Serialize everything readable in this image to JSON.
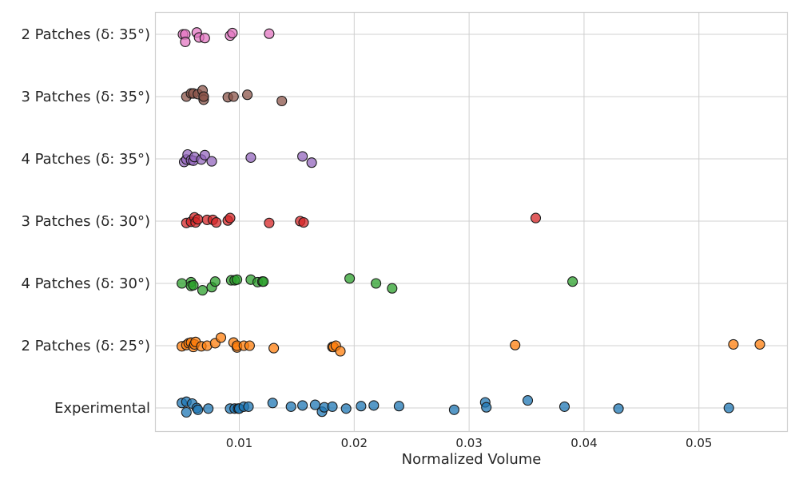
{
  "chart_data": {
    "type": "scatter",
    "title": "",
    "xlabel": "Normalized Volume",
    "ylabel": "",
    "xlim": [
      0.0027,
      0.0577
    ],
    "xticks": [
      0.01,
      0.02,
      0.03,
      0.04,
      0.05
    ],
    "xtick_labels": [
      "0.01",
      "0.02",
      "0.03",
      "0.04",
      "0.05"
    ],
    "grid": true,
    "categories": [
      "Experimental",
      "2 Patches (δ: 25°)",
      "4 Patches (δ: 30°)",
      "3 Patches (δ: 30°)",
      "4 Patches (δ: 35°)",
      "3 Patches (δ: 35°)",
      "2 Patches (δ: 35°)"
    ],
    "series": [
      {
        "name": "Experimental",
        "color": "#1f77b4",
        "x": [
          0.005,
          0.0054,
          0.0054,
          0.0059,
          0.0063,
          0.0064,
          0.0073,
          0.0092,
          0.0096,
          0.0099,
          0.01,
          0.0104,
          0.0108,
          0.0129,
          0.0145,
          0.0155,
          0.0166,
          0.0172,
          0.0174,
          0.0181,
          0.0193,
          0.0206,
          0.0217,
          0.0239,
          0.0287,
          0.0314,
          0.0315,
          0.0351,
          0.0383,
          0.043,
          0.0526
        ],
        "jitter": [
          0.08,
          0.1,
          -0.07,
          0.07,
          0.0,
          -0.03,
          -0.01,
          -0.01,
          -0.01,
          -0.01,
          -0.01,
          0.02,
          0.02,
          0.08,
          0.02,
          0.04,
          0.05,
          -0.06,
          0.01,
          0.02,
          -0.01,
          0.03,
          0.04,
          0.03,
          -0.03,
          0.09,
          0.01,
          0.12,
          0.02,
          -0.01,
          0.0
        ]
      },
      {
        "name": "2 Patches (δ: 25°)",
        "color": "#ff7f0e",
        "x": [
          0.005,
          0.0054,
          0.0056,
          0.0058,
          0.006,
          0.0061,
          0.0062,
          0.0067,
          0.0072,
          0.0079,
          0.0084,
          0.0095,
          0.0098,
          0.0098,
          0.0104,
          0.0109,
          0.013,
          0.0181,
          0.0182,
          0.0184,
          0.0188,
          0.034,
          0.053,
          0.0553
        ],
        "jitter": [
          -0.01,
          0.01,
          0.04,
          0.05,
          -0.02,
          0.02,
          0.06,
          -0.01,
          0.0,
          0.04,
          0.13,
          0.05,
          -0.03,
          0.0,
          0.0,
          0.0,
          -0.04,
          -0.02,
          -0.02,
          0.0,
          -0.09,
          0.01,
          0.02,
          0.02
        ]
      },
      {
        "name": "4 Patches (δ: 30°)",
        "color": "#2ca02c",
        "x": [
          0.005,
          0.0058,
          0.0058,
          0.006,
          0.0068,
          0.0076,
          0.0079,
          0.0093,
          0.0096,
          0.0098,
          0.011,
          0.0116,
          0.012,
          0.0121,
          0.0196,
          0.0219,
          0.0233,
          0.039
        ],
        "jitter": [
          0.0,
          0.02,
          -0.04,
          -0.03,
          -0.11,
          -0.06,
          0.03,
          0.05,
          0.05,
          0.06,
          0.06,
          0.02,
          0.03,
          0.03,
          0.08,
          0.0,
          -0.08,
          0.03
        ]
      },
      {
        "name": "3 Patches (δ: 30°)",
        "color": "#d62728",
        "x": [
          0.0054,
          0.0058,
          0.0061,
          0.0062,
          0.0064,
          0.0072,
          0.0077,
          0.008,
          0.009,
          0.0092,
          0.0126,
          0.0153,
          0.0156,
          0.0358
        ],
        "jitter": [
          -0.03,
          -0.01,
          0.06,
          -0.02,
          0.03,
          0.02,
          0.02,
          -0.02,
          0.01,
          0.05,
          -0.03,
          0.0,
          -0.02,
          0.05
        ]
      },
      {
        "name": "4 Patches (δ: 35°)",
        "color": "#9467bd",
        "x": [
          0.0052,
          0.0054,
          0.0055,
          0.0058,
          0.006,
          0.0061,
          0.0067,
          0.007,
          0.0076,
          0.011,
          0.0155,
          0.0163
        ],
        "jitter": [
          -0.05,
          -0.01,
          0.07,
          -0.02,
          -0.03,
          0.03,
          -0.01,
          0.06,
          -0.04,
          0.02,
          0.04,
          -0.06
        ]
      },
      {
        "name": "3 Patches (δ: 35°)",
        "color": "#8c564b",
        "x": [
          0.0054,
          0.0058,
          0.006,
          0.0064,
          0.0068,
          0.0069,
          0.0069,
          0.0069,
          0.009,
          0.0095,
          0.0107,
          0.0137
        ],
        "jitter": [
          0.0,
          0.05,
          0.05,
          0.04,
          0.1,
          0.0,
          -0.05,
          0.0,
          -0.01,
          0.0,
          0.03,
          -0.07
        ]
      },
      {
        "name": "2 Patches (δ: 35°)",
        "color": "#e377c2",
        "x": [
          0.0051,
          0.0053,
          0.0053,
          0.0063,
          0.0065,
          0.007,
          0.0092,
          0.0094,
          0.0126
        ],
        "jitter": [
          0.0,
          0.0,
          -0.12,
          0.03,
          -0.05,
          -0.06,
          -0.02,
          0.02,
          0.01
        ]
      }
    ]
  }
}
